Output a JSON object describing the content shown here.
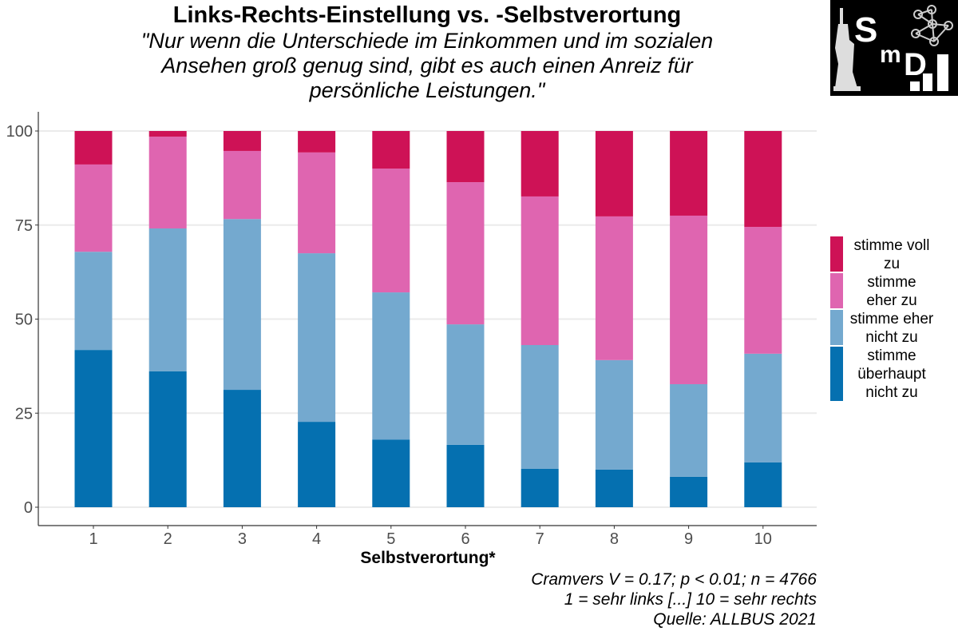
{
  "header": {
    "title": "Links-Rechts-Einstellung vs. -Selbstverortung",
    "subtitle_lines": [
      "\"Nur wenn die Unterschiede im Einkommen und im sozialen",
      "Ansehen groß genug sind, gibt es auch einen Anreiz für",
      "persönliche Leistungen.\""
    ]
  },
  "logo": {
    "text_s": "S",
    "text_m": "m",
    "text_d": "D",
    "icon": "smd-logo-icon"
  },
  "captions": [
    "Cramvers V = 0.17; p < 0.01; n = 4766",
    "1 = sehr links [...] 10 = sehr rechts",
    "Quelle: ALLBUS 2021"
  ],
  "chart_data": {
    "type": "bar",
    "stacked": true,
    "title": "Links-Rechts-Einstellung vs. -Selbstverortung",
    "subtitle": "\"Nur wenn die Unterschiede im Einkommen und im sozialen Ansehen groß genug sind, gibt es auch einen Anreiz für persönliche Leistungen.\"",
    "xlabel": "Selbstverortung*",
    "ylabel": "",
    "categories": [
      "1",
      "2",
      "3",
      "4",
      "5",
      "6",
      "7",
      "8",
      "9",
      "10"
    ],
    "ylim": [
      0,
      100
    ],
    "yticks": [
      0,
      25,
      50,
      75,
      100
    ],
    "grid": "horizontal",
    "legend_position": "right",
    "series": [
      {
        "name": "stimme überhaupt nicht zu",
        "legend_lines": [
          "stimme",
          "überhaupt",
          "nicht zu"
        ],
        "color": "#0570b0",
        "values": [
          41.8,
          36.1,
          31.2,
          22.7,
          18.0,
          16.6,
          10.2,
          10.0,
          8.1,
          11.9
        ]
      },
      {
        "name": "stimme eher nicht zu",
        "legend_lines": [
          "stimme eher",
          "nicht zu"
        ],
        "color": "#74a9cf",
        "values": [
          26.1,
          38.0,
          45.4,
          44.8,
          39.1,
          32.0,
          32.9,
          29.1,
          24.6,
          28.9
        ]
      },
      {
        "name": "stimme eher zu",
        "legend_lines": [
          "stimme",
          "eher zu"
        ],
        "color": "#df65b0",
        "values": [
          23.2,
          24.4,
          18.1,
          26.8,
          32.9,
          37.8,
          39.5,
          38.2,
          44.8,
          33.7
        ]
      },
      {
        "name": "stimme voll zu",
        "legend_lines": [
          "stimme voll",
          "zu"
        ],
        "color": "#ce1256",
        "values": [
          8.9,
          1.5,
          5.3,
          5.7,
          10.0,
          13.6,
          17.4,
          22.7,
          22.5,
          25.5
        ]
      }
    ]
  }
}
